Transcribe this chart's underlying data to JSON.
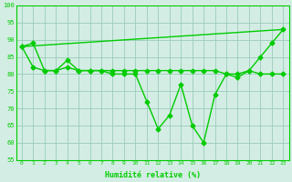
{
  "line1_x": [
    0,
    1,
    2,
    3,
    4,
    5,
    6,
    7,
    8,
    9,
    10,
    11,
    12,
    13,
    14,
    15,
    16,
    17,
    18,
    19,
    20,
    21,
    22,
    23
  ],
  "line1_y": [
    88,
    89,
    81,
    81,
    84,
    81,
    81,
    81,
    80,
    80,
    80,
    72,
    64,
    68,
    77,
    65,
    60,
    74,
    80,
    79,
    81,
    85,
    89,
    93
  ],
  "line2_x": [
    0,
    1,
    2,
    3,
    4,
    5,
    6,
    7,
    8,
    9,
    10,
    11,
    12,
    13,
    14,
    15,
    16,
    17,
    18,
    19,
    20,
    21,
    22,
    23
  ],
  "line2_y": [
    88,
    82,
    81,
    81,
    82,
    81,
    81,
    81,
    81,
    81,
    81,
    81,
    81,
    81,
    81,
    81,
    81,
    81,
    80,
    80,
    81,
    80,
    80,
    80
  ],
  "line3_x": [
    0,
    23
  ],
  "line3_y": [
    88,
    93
  ],
  "line_color": "#00cc00",
  "bg_color": "#d4ede4",
  "grid_color": "#99ccbb",
  "xlabel": "Humidité relative (%)",
  "ylim": [
    55,
    100
  ],
  "xlim": [
    -0.5,
    23.5
  ],
  "yticks": [
    55,
    60,
    65,
    70,
    75,
    80,
    85,
    90,
    95,
    100
  ],
  "xticks": [
    0,
    1,
    2,
    3,
    4,
    5,
    6,
    7,
    8,
    9,
    10,
    11,
    12,
    13,
    14,
    15,
    16,
    17,
    18,
    19,
    20,
    21,
    22,
    23
  ],
  "xtick_labels": [
    "0",
    "1",
    "2",
    "3",
    "4",
    "5",
    "6",
    "7",
    "8",
    "9",
    "10",
    "11",
    "12",
    "13",
    "14",
    "15",
    "16",
    "17",
    "18",
    "19",
    "20",
    "21",
    "22",
    "23"
  ],
  "marker": "D",
  "markersize": 2.5,
  "linewidth": 1.0
}
